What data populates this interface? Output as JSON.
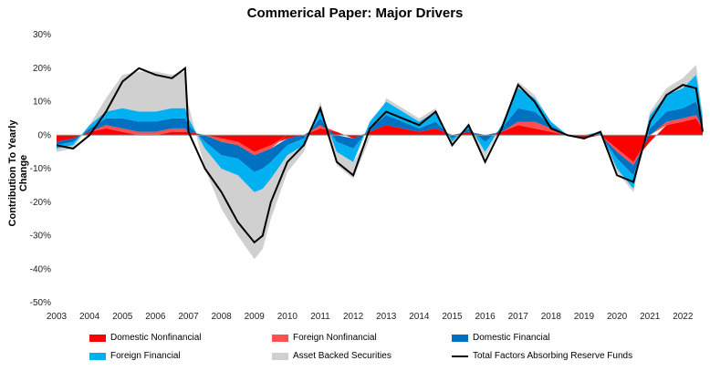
{
  "chart_data": {
    "type": "area",
    "title": "Commerical Paper: Major Drivers",
    "ylabel": "Contribution To Yearly Change",
    "xlabel": "",
    "ylim": [
      -50,
      30
    ],
    "yticks": [
      "30%",
      "20%",
      "10%",
      "0%",
      "-10%",
      "-20%",
      "-30%",
      "-40%",
      "-50%"
    ],
    "ytick_values": [
      30,
      20,
      10,
      0,
      -10,
      -20,
      -30,
      -40,
      -50
    ],
    "xticks": [
      "2003",
      "2004",
      "2005",
      "2006",
      "2007",
      "2008",
      "2009",
      "2010",
      "2011",
      "2012",
      "2013",
      "2014",
      "2015",
      "2016",
      "2017",
      "2018",
      "2019",
      "2020",
      "2021",
      "2022"
    ],
    "x": [
      2003.0,
      2003.5,
      2004.0,
      2004.5,
      2005.0,
      2005.5,
      2006.0,
      2006.5,
      2006.9,
      2007.0,
      2007.5,
      2008.0,
      2008.5,
      2009.0,
      2009.25,
      2009.5,
      2010.0,
      2010.5,
      2011.0,
      2011.5,
      2012.0,
      2012.5,
      2013.0,
      2013.5,
      2014.0,
      2014.5,
      2015.0,
      2015.5,
      2016.0,
      2016.5,
      2017.0,
      2017.5,
      2018.0,
      2018.5,
      2019.0,
      2019.5,
      2020.0,
      2020.5,
      2021.0,
      2021.5,
      2022.0,
      2022.4,
      2022.6
    ],
    "series": [
      {
        "name": "Domestic Nonfinancial",
        "color": "#ff0000",
        "values": [
          -2,
          -1,
          1,
          2,
          1,
          0,
          0,
          1,
          1,
          1,
          0,
          -1,
          -2,
          -5,
          -4,
          -3,
          -1,
          0,
          2,
          1,
          -1,
          1,
          3,
          2,
          1,
          2,
          0,
          1,
          0,
          1,
          3,
          2,
          1,
          0,
          -1,
          0,
          -4,
          -8,
          -2,
          3,
          4,
          5,
          2
        ]
      },
      {
        "name": "Foreign Nonfinancial",
        "color": "#ff5050",
        "values": [
          0,
          0,
          0,
          1,
          1,
          1,
          1,
          1,
          1,
          0,
          0,
          -1,
          -1,
          -1,
          -1,
          -1,
          0,
          0,
          1,
          0,
          0,
          0,
          0,
          0,
          0,
          0,
          0,
          0,
          0,
          0,
          1,
          2,
          1,
          0,
          0,
          0,
          -1,
          -1,
          0,
          1,
          1,
          1,
          0
        ]
      },
      {
        "name": "Domestic Financial",
        "color": "#0070c0",
        "values": [
          -1,
          -1,
          1,
          2,
          3,
          3,
          3,
          3,
          3,
          2,
          -2,
          -4,
          -4,
          -5,
          -5,
          -4,
          -2,
          -1,
          2,
          -2,
          -3,
          1,
          3,
          2,
          1,
          2,
          -1,
          1,
          -2,
          1,
          4,
          3,
          1,
          0,
          0,
          0,
          -2,
          -3,
          2,
          3,
          3,
          4,
          1
        ]
      },
      {
        "name": "Foreign Financial",
        "color": "#00b0f0",
        "values": [
          -1,
          -1,
          1,
          2,
          3,
          3,
          3,
          3,
          3,
          2,
          -2,
          -4,
          -5,
          -6,
          -6,
          -5,
          -3,
          -2,
          3,
          -3,
          -4,
          2,
          4,
          3,
          2,
          3,
          -1,
          1,
          -3,
          1,
          6,
          4,
          1,
          0,
          0,
          1,
          -3,
          -4,
          4,
          5,
          6,
          8,
          2
        ]
      },
      {
        "name": "Asset Backed Securities",
        "color": "#d0d0d0",
        "values": [
          -1,
          -1,
          0,
          4,
          10,
          12,
          12,
          10,
          11,
          4,
          -6,
          -12,
          -18,
          -20,
          -18,
          -12,
          -5,
          -2,
          2,
          -4,
          -5,
          -1,
          1,
          1,
          1,
          1,
          -1,
          0,
          -2,
          0,
          2,
          1,
          0,
          0,
          0,
          0,
          -1,
          -1,
          1,
          2,
          3,
          3,
          1
        ]
      }
    ],
    "line": {
      "name": "Total Factors Absorbing Reserve Funds",
      "color": "#000000",
      "values": [
        -3,
        -4,
        0,
        7,
        16,
        20,
        18,
        17,
        20,
        1,
        -10,
        -17,
        -26,
        -32,
        -30,
        -20,
        -8,
        -3,
        8,
        -8,
        -12,
        2,
        7,
        5,
        3,
        7,
        -3,
        3,
        -8,
        2,
        15,
        10,
        2,
        0,
        -1,
        1,
        -12,
        -14,
        4,
        12,
        15,
        14,
        1
      ]
    },
    "legend": {
      "placement": "bottom"
    }
  }
}
